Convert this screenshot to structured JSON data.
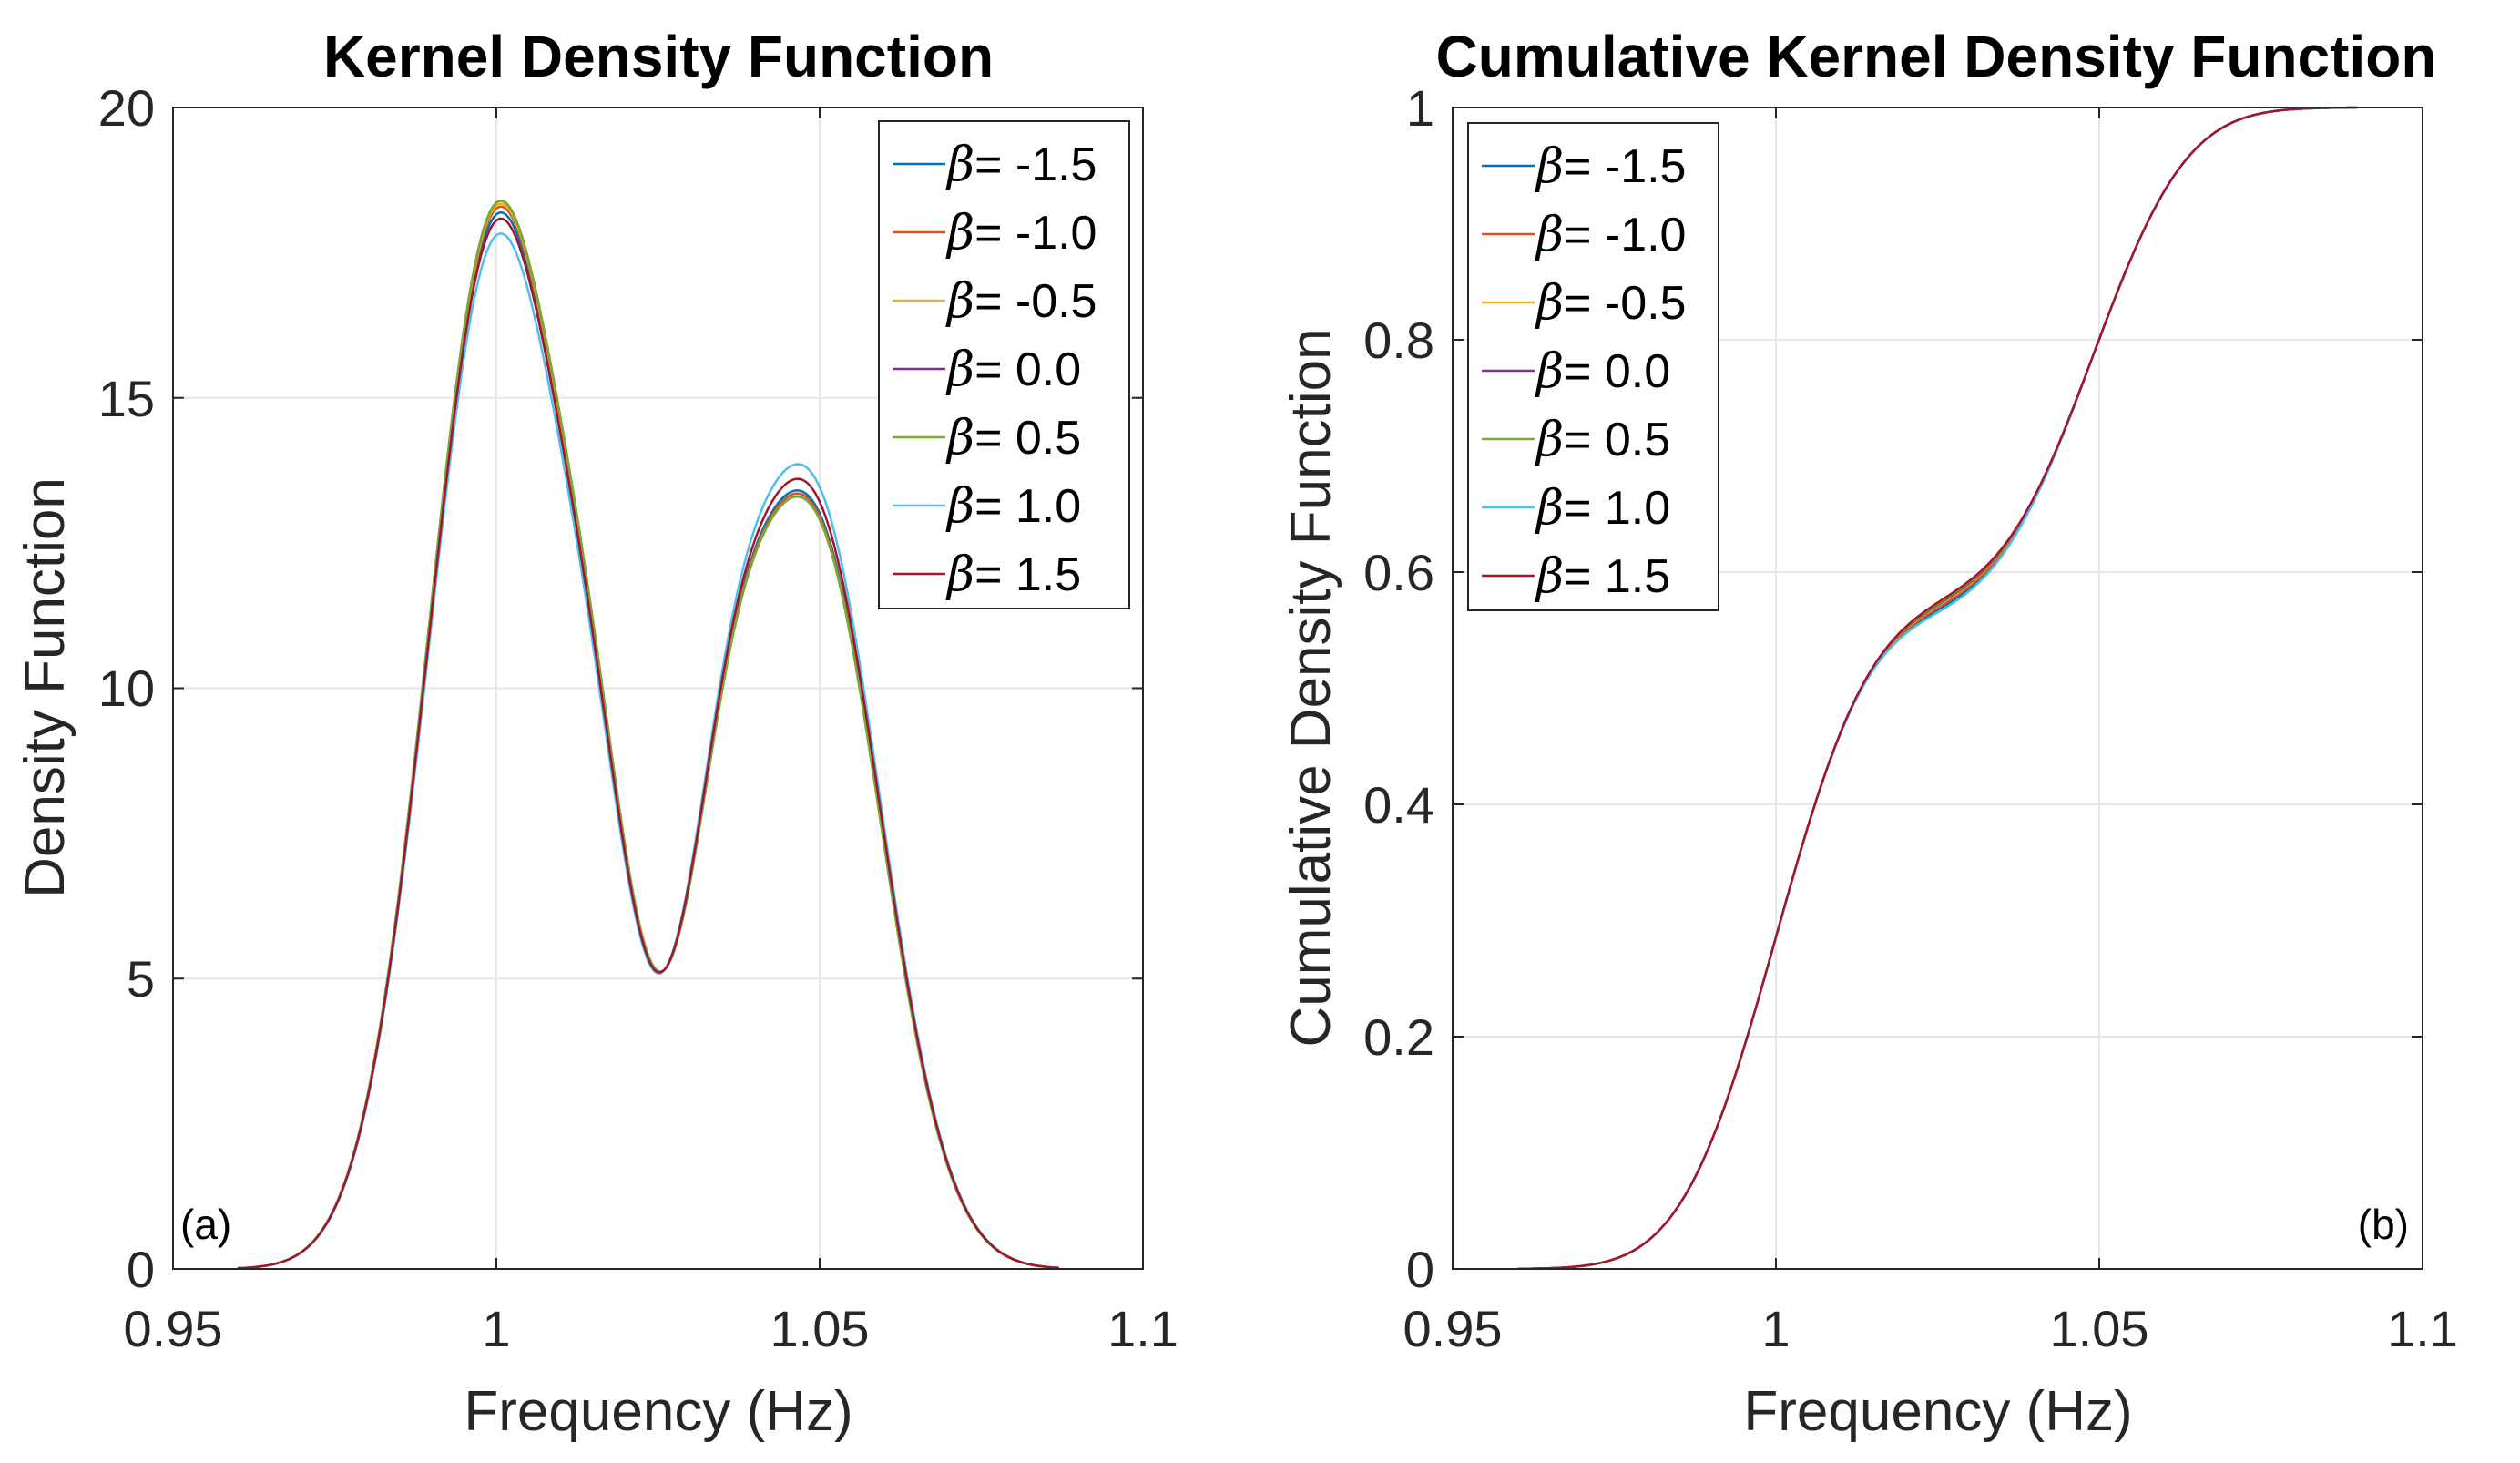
{
  "chart_data": [
    {
      "id": "a",
      "type": "line",
      "title": "Kernel Density Function",
      "xlabel": "Frequency (Hz)",
      "ylabel": "Density Function",
      "xlim": [
        0.95,
        1.1
      ],
      "ylim": [
        0,
        20
      ],
      "xticks": [
        0.95,
        1.0,
        1.05,
        1.1
      ],
      "xtick_labels": [
        "0.95",
        "1",
        "1.05",
        "1.1"
      ],
      "yticks": [
        0,
        5,
        10,
        15,
        20
      ],
      "ytick_labels": [
        "0",
        "5",
        "10",
        "15",
        "20"
      ],
      "grid": true,
      "legend_position": "top-right",
      "panel_label": "(a)",
      "panel_label_position": "bottom-left",
      "x_range": [
        0.96,
        1.087
      ],
      "series": [
        {
          "name": "β= -1.5",
          "symbol": "β",
          "value_label": "= -1.5",
          "color": "#0072BD",
          "beta": -1.5,
          "peak1": 17.9,
          "peak2": 12.7
        },
        {
          "name": "β= -1.0",
          "symbol": "β",
          "value_label": "= -1.0",
          "color": "#D95319",
          "beta": -1.0,
          "peak1": 18.0,
          "peak2": 12.65
        },
        {
          "name": "β= -0.5",
          "symbol": "β",
          "value_label": "= -0.5",
          "color": "#EDB120",
          "beta": -0.5,
          "peak1": 18.05,
          "peak2": 12.6
        },
        {
          "name": "β= 0.0",
          "symbol": "β",
          "value_label": "= 0.0",
          "color": "#7E2F8E",
          "beta": 0.0,
          "peak1": 18.1,
          "peak2": 12.6
        },
        {
          "name": "β= 0.5",
          "symbol": "β",
          "value_label": "= 0.5",
          "color": "#77AC30",
          "beta": 0.5,
          "peak1": 18.1,
          "peak2": 12.6
        },
        {
          "name": "β= 1.0",
          "symbol": "β",
          "value_label": "= 1.0",
          "color": "#4DBEEE",
          "beta": 1.0,
          "peak1": 17.55,
          "peak2": 13.15
        },
        {
          "name": "β= 1.5",
          "symbol": "β",
          "value_label": "= 1.5",
          "color": "#A2142F",
          "beta": 1.5,
          "peak1": 17.8,
          "peak2": 12.9
        }
      ],
      "shape": {
        "mu1": 1.0,
        "sigma1": 0.0105,
        "mu2": 1.049,
        "sigma2": 0.0105,
        "valley_x": 1.026,
        "valley_y": 5.15
      }
    },
    {
      "id": "b",
      "type": "line",
      "title": "Cumulative Kernel Density Function",
      "xlabel": "Frequency (Hz)",
      "ylabel": "Cumulative Density Function",
      "xlim": [
        0.95,
        1.1
      ],
      "ylim": [
        0,
        1
      ],
      "xticks": [
        0.95,
        1.0,
        1.05,
        1.1
      ],
      "xtick_labels": [
        "0.95",
        "1",
        "1.05",
        "1.1"
      ],
      "yticks": [
        0,
        0.2,
        0.4,
        0.6,
        0.8,
        1.0
      ],
      "ytick_labels": [
        "0",
        "0.2",
        "0.4",
        "0.6",
        "0.8",
        "1"
      ],
      "grid": true,
      "legend_position": "top-left",
      "panel_label": "(b)",
      "panel_label_position": "bottom-right",
      "x_range": [
        0.96,
        1.09
      ],
      "plateau_value": 0.57,
      "series": [
        {
          "name": "β= -1.5",
          "symbol": "β",
          "value_label": "= -1.5",
          "color": "#0072BD"
        },
        {
          "name": "β= -1.0",
          "symbol": "β",
          "value_label": "= -1.0",
          "color": "#D95319"
        },
        {
          "name": "β= -0.5",
          "symbol": "β",
          "value_label": "= -0.5",
          "color": "#EDB120"
        },
        {
          "name": "β= 0.0",
          "symbol": "β",
          "value_label": "= 0.0",
          "color": "#7E2F8E"
        },
        {
          "name": "β= 0.5",
          "symbol": "β",
          "value_label": "= 0.5",
          "color": "#77AC30"
        },
        {
          "name": "β= 1.0",
          "symbol": "β",
          "value_label": "= 1.0",
          "color": "#4DBEEE"
        },
        {
          "name": "β= 1.5",
          "symbol": "β",
          "value_label": "= 1.5",
          "color": "#A2142F"
        }
      ]
    }
  ]
}
